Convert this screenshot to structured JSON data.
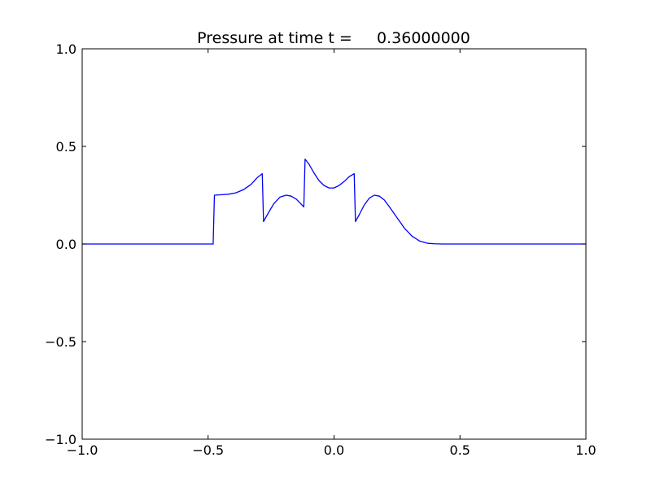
{
  "chart_data": {
    "type": "line",
    "title": "Pressure at time t =     0.36000000",
    "xlabel": "",
    "ylabel": "",
    "xlim": [
      -1.0,
      1.0
    ],
    "ylim": [
      -1.0,
      1.0
    ],
    "xticks": [
      -1.0,
      -0.5,
      0.0,
      0.5,
      1.0
    ],
    "xtick_labels": [
      "−1.0",
      "−0.5",
      "0.0",
      "0.5",
      "1.0"
    ],
    "yticks": [
      -1.0,
      -0.5,
      0.0,
      0.5,
      1.0
    ],
    "ytick_labels": [
      "−1.0",
      "−0.5",
      "0.0",
      "0.5",
      "1.0"
    ],
    "grid": false,
    "series": [
      {
        "color": "#0000ff",
        "x": [
          -1.0,
          -0.48,
          -0.475,
          -0.45,
          -0.42,
          -0.39,
          -0.36,
          -0.33,
          -0.305,
          -0.285,
          -0.28,
          -0.265,
          -0.24,
          -0.215,
          -0.19,
          -0.17,
          -0.15,
          -0.135,
          -0.12,
          -0.115,
          -0.1,
          -0.08,
          -0.06,
          -0.04,
          -0.02,
          0.0,
          0.02,
          0.04,
          0.06,
          0.08,
          0.085,
          0.1,
          0.12,
          0.14,
          0.16,
          0.18,
          0.2,
          0.22,
          0.25,
          0.28,
          0.31,
          0.34,
          0.37,
          0.4,
          0.43,
          0.46,
          0.5,
          0.6,
          1.0
        ],
        "y": [
          0.0,
          0.0,
          0.25,
          0.252,
          0.255,
          0.262,
          0.278,
          0.305,
          0.34,
          0.36,
          0.115,
          0.15,
          0.205,
          0.24,
          0.25,
          0.245,
          0.23,
          0.21,
          0.19,
          0.435,
          0.41,
          0.365,
          0.325,
          0.3,
          0.287,
          0.287,
          0.3,
          0.32,
          0.345,
          0.36,
          0.115,
          0.15,
          0.2,
          0.235,
          0.25,
          0.245,
          0.225,
          0.19,
          0.135,
          0.08,
          0.04,
          0.015,
          0.004,
          0.001,
          0.0,
          0.0,
          0.0,
          0.0,
          0.0
        ]
      }
    ]
  }
}
